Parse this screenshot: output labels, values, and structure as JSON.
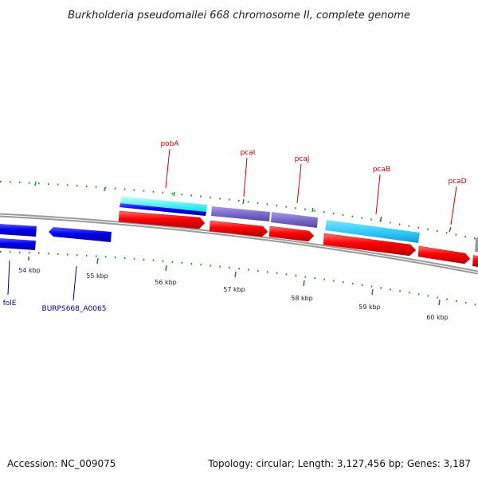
{
  "title": "Burkholderia pseudomallei 668 chromosome II, complete genome",
  "footer": {
    "accession": "Accession: NC_009075",
    "topology": "Topology: circular; Length: 3,127,456 bp; Genes: 3,187"
  },
  "scale_labels": [
    "54 kbp",
    "55 kbp",
    "56 kbp",
    "57 kbp",
    "58 kbp",
    "59 kbp",
    "60 kbp"
  ],
  "gene_labels": [
    {
      "name": "pobA",
      "strand": "top"
    },
    {
      "name": "pcaI",
      "strand": "top"
    },
    {
      "name": "pcaJ",
      "strand": "top"
    },
    {
      "name": "pcaB",
      "strand": "top"
    },
    {
      "name": "pcaD",
      "strand": "top"
    },
    {
      "name": "folE",
      "strand": "bottom"
    },
    {
      "name": "BURPS668_A0065",
      "strand": "bottom"
    }
  ],
  "colors": {
    "backbone": "#888888",
    "cds_forward": "#ff0000",
    "cds_reverse": "#0000ee",
    "feature_cyan": "#33ccff",
    "feature_purple": "#7a6acc",
    "tick": "#2e8b2e",
    "label_top": "#cc0000",
    "label_bottom": "#000099"
  }
}
